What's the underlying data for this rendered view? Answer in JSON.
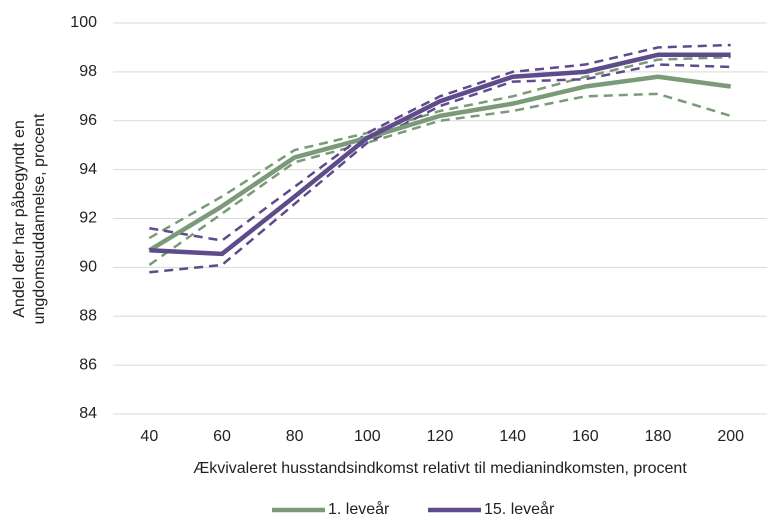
{
  "chart_data": {
    "type": "line",
    "x_label": "Ækvivaleret husstandsindkomst relativt til medianindkomsten, procent",
    "y_label": [
      "Andel der har påbegyndt en",
      "ungdomsuddannelse, procent"
    ],
    "categories": [
      40,
      60,
      80,
      100,
      120,
      140,
      160,
      180,
      200
    ],
    "series": [
      {
        "name": "1. leveår",
        "color": "#7b9a78",
        "values": [
          90.7,
          92.5,
          94.5,
          95.3,
          96.2,
          96.7,
          97.4,
          97.8,
          97.4
        ],
        "upper": [
          91.2,
          92.9,
          94.8,
          95.5,
          96.4,
          97.0,
          97.8,
          98.5,
          98.6
        ],
        "lower": [
          90.1,
          92.2,
          94.3,
          95.1,
          96.0,
          96.4,
          97.0,
          97.1,
          96.2
        ]
      },
      {
        "name": "15. leveår",
        "color": "#5e4b8b",
        "values": [
          90.7,
          90.55,
          92.9,
          95.3,
          96.8,
          97.8,
          98.0,
          98.7,
          98.7
        ],
        "upper": [
          91.6,
          91.1,
          93.3,
          95.5,
          97.0,
          98.0,
          98.3,
          99.0,
          99.1
        ],
        "lower": [
          89.8,
          90.1,
          92.6,
          95.1,
          96.6,
          97.6,
          97.7,
          98.3,
          98.2
        ]
      }
    ],
    "ylim": [
      84,
      100
    ],
    "yticks": [
      84,
      86,
      88,
      90,
      92,
      94,
      96,
      98,
      100
    ],
    "grid": true
  }
}
